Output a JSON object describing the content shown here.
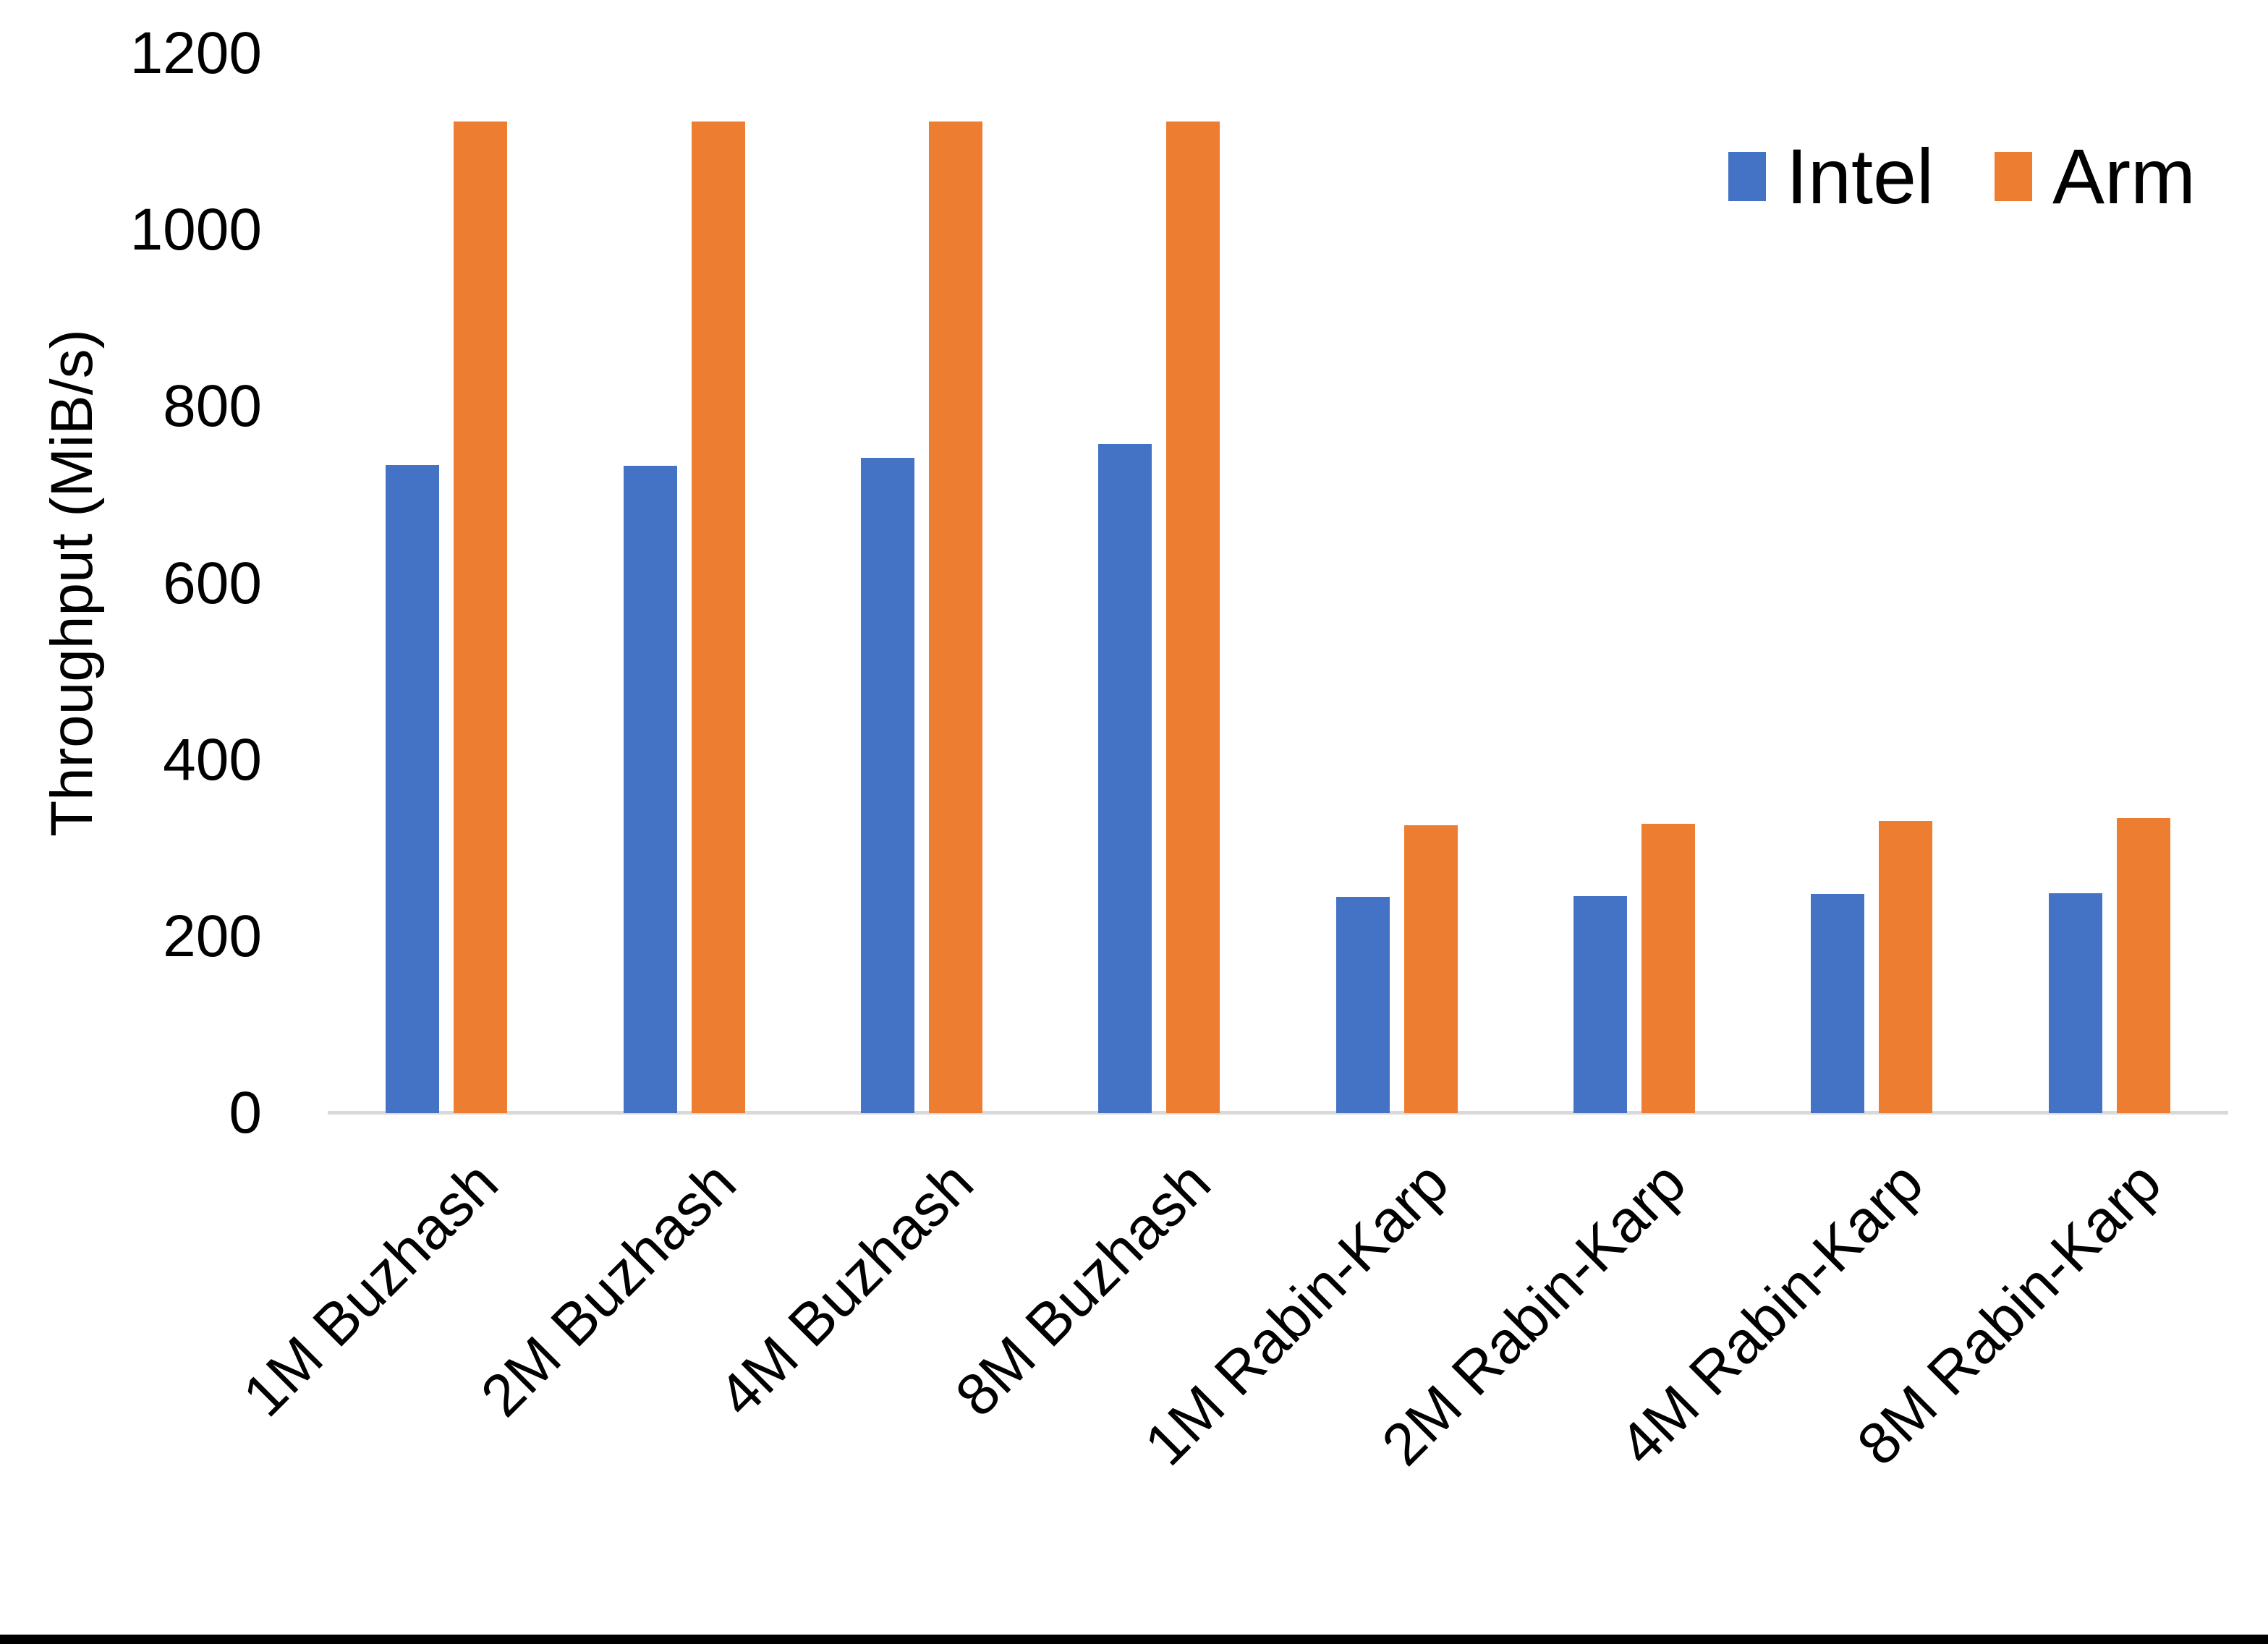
{
  "chart_data": {
    "type": "bar",
    "title": "",
    "xlabel": "",
    "ylabel": "Throughput (MiB/s)",
    "ylim": [
      0,
      1200
    ],
    "yticks": [
      0,
      200,
      400,
      600,
      800,
      1000,
      1200
    ],
    "grid": false,
    "legend_position": "top-right",
    "axis_line_color": "#D9D9D9",
    "categories": [
      "1M Buzhash",
      "2M Buzhash",
      "4M Buzhash",
      "8M Buzhash",
      "1M Rabin-Karp",
      "2M Rabin-Karp",
      "4M Rabin-Karp",
      "8M Rabin-Karp"
    ],
    "series": [
      {
        "name": "Intel",
        "color": "#4472C4",
        "values": [
          734,
          733,
          742,
          758,
          245,
          246,
          248,
          249
        ]
      },
      {
        "name": "Arm",
        "color": "#ED7D31",
        "values": [
          1123,
          1123,
          1123,
          1123,
          326,
          328,
          331,
          334
        ]
      }
    ]
  }
}
